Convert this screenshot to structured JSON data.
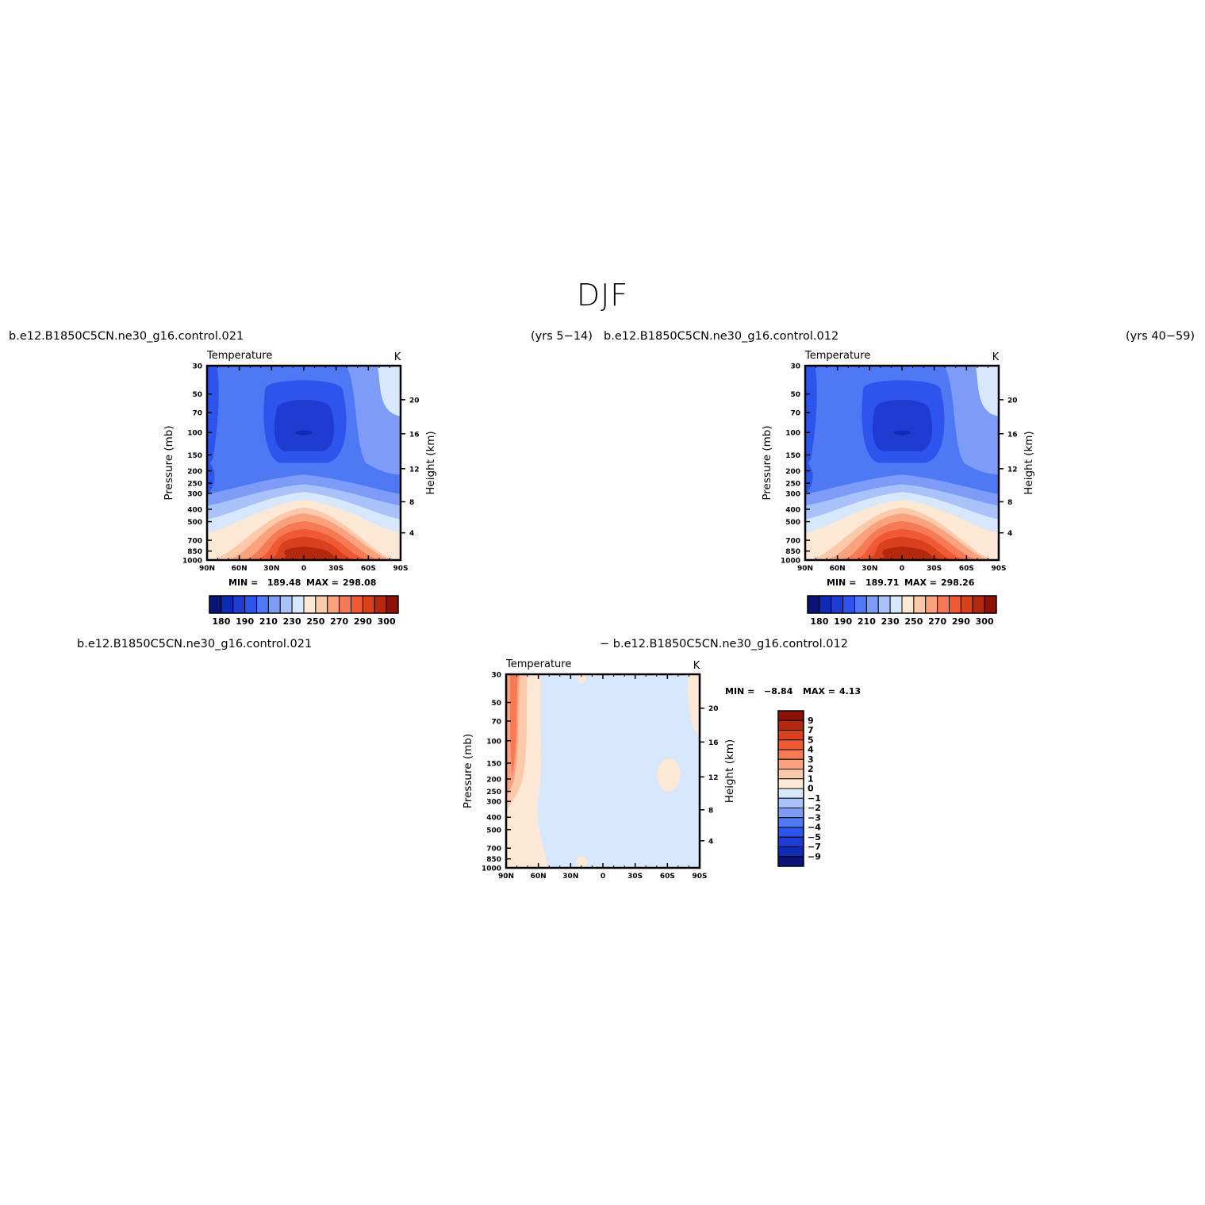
{
  "page": {
    "title": "DJF"
  },
  "panels": [
    {
      "id": "p1",
      "case_left": "b.e12.B1850C5CN.ne30_g16.control.021",
      "case_right": "(yrs 5−14)"
    },
    {
      "id": "p2",
      "case_left": "b.e12.B1850C5CN.ne30_g16.control.012",
      "case_right": "(yrs 40−59)"
    },
    {
      "id": "p3",
      "case_left": "b.e12.B1850C5CN.ne30_g16.control.021",
      "case_right": "− b.e12.B1850C5CN.ne30_g16.control.012"
    }
  ],
  "chart_data": [
    {
      "type": "contour",
      "id": "p1",
      "title": "Temperature",
      "units": "K",
      "xlabel": "",
      "ylabel": "Pressure (mb)",
      "ylabel_right": "Height (km)",
      "x_ticks": [
        "90N",
        "60N",
        "30N",
        "0",
        "30S",
        "60S",
        "90S"
      ],
      "y_ticks": [
        "30",
        "50",
        "70",
        "100",
        "150",
        "200",
        "250",
        "300",
        "400",
        "500",
        "700",
        "850",
        "1000"
      ],
      "height_ticks": [
        "20",
        "16",
        "12",
        "8",
        "4"
      ],
      "stats": {
        "min_label": "MIN =",
        "min": "189.48",
        "max_label": "MAX =",
        "max": "298.08"
      },
      "colorbar": {
        "orientation": "horizontal",
        "tick_labels": [
          "180",
          "190",
          "210",
          "230",
          "250",
          "270",
          "290",
          "300"
        ],
        "colors": [
          "#0a1478",
          "#0f2ab4",
          "#1e3cd2",
          "#2d55ee",
          "#4f78f5",
          "#7d9cf7",
          "#aac2fa",
          "#d7e7fc",
          "#fde8d6",
          "#fcc9aa",
          "#f9a27d",
          "#f67a55",
          "#ef5a35",
          "#d8401e",
          "#b42810",
          "#8e1108"
        ]
      },
      "ylim": [
        1000,
        30
      ],
      "xlim": [
        -90,
        90
      ],
      "grid": false
    },
    {
      "type": "contour",
      "id": "p2",
      "title": "Temperature",
      "units": "K",
      "xlabel": "",
      "ylabel": "Pressure (mb)",
      "ylabel_right": "Height (km)",
      "x_ticks": [
        "90N",
        "60N",
        "30N",
        "0",
        "30S",
        "60S",
        "90S"
      ],
      "y_ticks": [
        "30",
        "50",
        "70",
        "100",
        "150",
        "200",
        "250",
        "300",
        "400",
        "500",
        "700",
        "850",
        "1000"
      ],
      "height_ticks": [
        "20",
        "16",
        "12",
        "8",
        "4"
      ],
      "stats": {
        "min_label": "MIN =",
        "min": "189.71",
        "max_label": "MAX =",
        "max": "298.26"
      },
      "colorbar": {
        "orientation": "horizontal",
        "tick_labels": [
          "180",
          "190",
          "210",
          "230",
          "250",
          "270",
          "290",
          "300"
        ],
        "colors": [
          "#0a1478",
          "#0f2ab4",
          "#1e3cd2",
          "#2d55ee",
          "#4f78f5",
          "#7d9cf7",
          "#aac2fa",
          "#d7e7fc",
          "#fde8d6",
          "#fcc9aa",
          "#f9a27d",
          "#f67a55",
          "#ef5a35",
          "#d8401e",
          "#b42810",
          "#8e1108"
        ]
      },
      "ylim": [
        1000,
        30
      ],
      "xlim": [
        -90,
        90
      ],
      "grid": false
    },
    {
      "type": "contour",
      "id": "p3",
      "title": "Temperature",
      "units": "K",
      "xlabel": "",
      "ylabel": "Pressure (mb)",
      "ylabel_right": "Height (km)",
      "x_ticks": [
        "90N",
        "60N",
        "30N",
        "0",
        "30S",
        "60S",
        "90S"
      ],
      "y_ticks": [
        "30",
        "50",
        "70",
        "100",
        "150",
        "200",
        "250",
        "300",
        "400",
        "500",
        "700",
        "850",
        "1000"
      ],
      "height_ticks": [
        "20",
        "16",
        "12",
        "8",
        "4"
      ],
      "stats": {
        "min_label": "MIN =",
        "min": "−8.84",
        "max_label": "MAX =",
        "max": "4.13"
      },
      "colorbar": {
        "orientation": "vertical",
        "tick_labels": [
          "9",
          "7",
          "5",
          "4",
          "3",
          "2",
          "1",
          "0",
          "−1",
          "−2",
          "−3",
          "−4",
          "−5",
          "−7",
          "−9"
        ],
        "colors": [
          "#8e1108",
          "#b42810",
          "#d8401e",
          "#ef5a35",
          "#f67a55",
          "#f9a27d",
          "#fcc9aa",
          "#fde8d6",
          "#d7e7fc",
          "#aac2fa",
          "#7d9cf7",
          "#4f78f5",
          "#2d55ee",
          "#1e3cd2",
          "#0f2ab4",
          "#0a1478"
        ]
      },
      "ylim": [
        1000,
        30
      ],
      "xlim": [
        -90,
        90
      ],
      "grid": false
    }
  ]
}
